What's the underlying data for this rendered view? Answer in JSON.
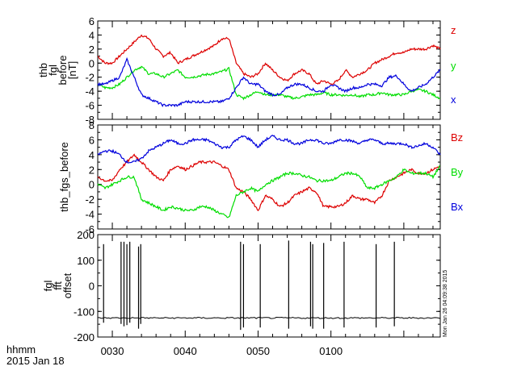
{
  "time_axis": {
    "ticks": [
      "0030",
      "0040",
      "0050",
      "0100"
    ],
    "label_line1": "hhmm",
    "label_line2": "2015 Jan 18"
  },
  "timestamp": "Mon Jan 26 04:09:38 2015",
  "chart_data": [
    {
      "type": "line",
      "panel": "top",
      "ylabel": [
        "thb",
        "fgl",
        "before",
        "[nT]"
      ],
      "ylim": [
        -8,
        6
      ],
      "yticks": [
        "6",
        "4",
        "2",
        "0",
        "-2",
        "-4",
        "-6",
        "-8"
      ],
      "xlim_minutes": [
        28,
        75
      ],
      "series": [
        {
          "name": "z",
          "color": "#dd0000",
          "x": [
            28,
            29,
            30,
            31,
            32,
            33,
            34,
            35,
            36,
            37,
            38,
            39,
            40,
            41,
            42,
            43,
            44,
            45,
            46,
            47,
            48,
            49,
            50,
            51,
            52,
            53,
            54,
            55,
            56,
            57,
            58,
            59,
            60,
            61,
            62,
            63,
            64,
            65,
            66,
            67,
            68,
            69,
            70,
            71,
            72,
            73,
            74,
            75
          ],
          "y": [
            1,
            0,
            0,
            1,
            2,
            3,
            4,
            3.5,
            2,
            1,
            1.5,
            0,
            0.5,
            1,
            1.5,
            2,
            2.5,
            3.5,
            3.5,
            0,
            -1.5,
            -2,
            -1.5,
            0,
            -1,
            -2,
            -2.5,
            -1.5,
            -1,
            -1.5,
            -3,
            -2.5,
            -3,
            -2.5,
            -1,
            -2,
            -1.5,
            -1,
            0,
            0.5,
            1,
            1.5,
            1.5,
            2,
            2,
            2,
            2.5,
            2
          ]
        },
        {
          "name": "y",
          "color": "#00dd00",
          "x": [
            28,
            29,
            30,
            31,
            32,
            33,
            34,
            35,
            36,
            37,
            38,
            39,
            40,
            41,
            42,
            43,
            44,
            45,
            46,
            47,
            48,
            49,
            50,
            51,
            52,
            53,
            54,
            55,
            56,
            57,
            58,
            59,
            60,
            61,
            62,
            63,
            64,
            65,
            66,
            67,
            68,
            69,
            70,
            71,
            72,
            73,
            74,
            75
          ],
          "y": [
            -3,
            -3.5,
            -3.5,
            -3,
            -2,
            -1,
            -0.5,
            -1.5,
            -1.5,
            -2,
            -1.5,
            -1,
            -2,
            -2,
            -1.8,
            -1.6,
            -1.5,
            -1.2,
            -0.8,
            -4.5,
            -5,
            -4.5,
            -4,
            -4.5,
            -4.5,
            -4.5,
            -4.8,
            -5,
            -4.8,
            -4.5,
            -4.5,
            -4.2,
            -4.5,
            -4.5,
            -4.6,
            -4.5,
            -4.8,
            -4.5,
            -4.5,
            -4.2,
            -4.5,
            -4.5,
            -4.5,
            -4,
            -3.8,
            -4,
            -4.5,
            -5
          ]
        },
        {
          "name": "x",
          "color": "#0000dd",
          "x": [
            28,
            29,
            30,
            31,
            32,
            33,
            34,
            35,
            36,
            37,
            38,
            39,
            40,
            41,
            42,
            43,
            44,
            45,
            46,
            47,
            48,
            49,
            50,
            51,
            52,
            53,
            54,
            55,
            56,
            57,
            58,
            59,
            60,
            61,
            62,
            63,
            64,
            65,
            66,
            67,
            68,
            69,
            70,
            71,
            72,
            73,
            74,
            75
          ],
          "y": [
            -3,
            -3,
            -2.5,
            -2,
            0.5,
            -2,
            -4.5,
            -5,
            -5.5,
            -6,
            -6,
            -6,
            -5.5,
            -5.5,
            -5.5,
            -5.5,
            -5.5,
            -5.5,
            -5,
            -3.5,
            -2,
            -3,
            -3,
            -4,
            -4.5,
            -4.5,
            -3.5,
            -3,
            -3,
            -3.5,
            -4,
            -4,
            -3,
            -3.5,
            -4,
            -3.5,
            -3.5,
            -3,
            -3,
            -3.2,
            -2,
            -1.8,
            -3,
            -4,
            -3.5,
            -3,
            -2,
            -1
          ]
        }
      ],
      "series_labels_position": "right"
    },
    {
      "type": "line",
      "panel": "middle",
      "ylabel": [
        "thb_fgs_before"
      ],
      "ylim": [
        -6,
        8
      ],
      "yticks": [
        "8",
        "6",
        "4",
        "2",
        "0",
        "-2",
        "-4",
        "-6"
      ],
      "xlim_minutes": [
        28,
        75
      ],
      "series": [
        {
          "name": "Bz",
          "color": "#dd0000",
          "x": [
            28,
            29,
            30,
            31,
            32,
            33,
            34,
            35,
            36,
            37,
            38,
            39,
            40,
            41,
            42,
            43,
            44,
            45,
            46,
            47,
            48,
            49,
            50,
            51,
            52,
            53,
            54,
            55,
            56,
            57,
            58,
            59,
            60,
            61,
            62,
            63,
            64,
            65,
            66,
            67,
            68,
            69,
            70,
            71,
            72,
            73,
            74,
            75
          ],
          "y": [
            1,
            0.5,
            0.5,
            2,
            3,
            4,
            3,
            2,
            1,
            0.5,
            2,
            2.5,
            2,
            2.5,
            3,
            3,
            3,
            2.5,
            2,
            -0.5,
            -1,
            -2,
            -3.5,
            -1.5,
            -2,
            -3,
            -2.5,
            -1.5,
            -1,
            -0.5,
            -1,
            -3,
            -3,
            -3,
            -2.5,
            -1.5,
            -2,
            -2,
            -2.5,
            -1.5,
            0.5,
            1,
            1.5,
            2,
            1.5,
            1.5,
            2,
            2.5
          ]
        },
        {
          "name": "By",
          "color": "#00dd00",
          "x": [
            28,
            29,
            30,
            31,
            32,
            33,
            34,
            35,
            36,
            37,
            38,
            39,
            40,
            41,
            42,
            43,
            44,
            45,
            46,
            47,
            48,
            49,
            50,
            51,
            52,
            53,
            54,
            55,
            56,
            57,
            58,
            59,
            60,
            61,
            62,
            63,
            64,
            65,
            66,
            67,
            68,
            69,
            70,
            71,
            72,
            73,
            74,
            75
          ],
          "y": [
            0,
            -0.5,
            0,
            0.5,
            1,
            1,
            -2,
            -2.5,
            -3,
            -3.5,
            -3,
            -3.2,
            -3.5,
            -3.5,
            -3,
            -3,
            -3.5,
            -4,
            -4.5,
            -1.5,
            -1,
            -0.5,
            -1,
            0,
            0.5,
            1,
            1.5,
            1.5,
            1.2,
            1,
            0.5,
            0.5,
            0.5,
            1,
            1.5,
            1.5,
            1,
            -0.5,
            -0.5,
            0,
            0.5,
            1,
            2,
            1.5,
            1.5,
            1.5,
            1,
            2.5
          ]
        },
        {
          "name": "Bx",
          "color": "#0000dd",
          "x": [
            28,
            29,
            30,
            31,
            32,
            33,
            34,
            35,
            36,
            37,
            38,
            39,
            40,
            41,
            42,
            43,
            44,
            45,
            46,
            47,
            48,
            49,
            50,
            51,
            52,
            53,
            54,
            55,
            56,
            57,
            58,
            59,
            60,
            61,
            62,
            63,
            64,
            65,
            66,
            67,
            68,
            69,
            70,
            71,
            72,
            73,
            74,
            75
          ],
          "y": [
            4,
            4.5,
            4.5,
            4,
            3,
            3,
            3.5,
            4.5,
            5,
            5.5,
            6,
            5.5,
            5.5,
            6,
            6,
            6,
            5.5,
            5,
            5,
            6,
            6.5,
            6,
            5,
            6,
            6.5,
            6,
            6,
            5.5,
            5.5,
            6,
            6,
            5.5,
            5.5,
            6,
            6,
            5.8,
            5.5,
            6,
            6,
            5.5,
            5.5,
            5.5,
            5.5,
            5,
            5.2,
            5.5,
            5,
            4
          ]
        }
      ],
      "series_labels_position": "right"
    },
    {
      "type": "line",
      "panel": "bottom",
      "ylabel": [
        "fgl",
        "fft",
        "offset"
      ],
      "ylim": [
        -220,
        210
      ],
      "yticks": [
        "200",
        "100",
        "0",
        "-100",
        "-200"
      ],
      "xlim_minutes": [
        28,
        75
      ],
      "baseline": -140,
      "spikes": [
        {
          "x": 28.8,
          "top": 170,
          "bottom": -160
        },
        {
          "x": 31.2,
          "top": 180,
          "bottom": -165
        },
        {
          "x": 31.6,
          "top": 180,
          "bottom": -175
        },
        {
          "x": 32.0,
          "top": 170,
          "bottom": -170
        },
        {
          "x": 32.4,
          "top": 180,
          "bottom": -160
        },
        {
          "x": 33.6,
          "top": 160,
          "bottom": -185
        },
        {
          "x": 33.9,
          "top": 170,
          "bottom": -165
        },
        {
          "x": 47.6,
          "top": 180,
          "bottom": -190
        },
        {
          "x": 48.0,
          "top": 170,
          "bottom": -180
        },
        {
          "x": 50.3,
          "top": 170,
          "bottom": -180
        },
        {
          "x": 54.2,
          "top": 185,
          "bottom": -185
        },
        {
          "x": 57.2,
          "top": 180,
          "bottom": -175
        },
        {
          "x": 57.5,
          "top": 170,
          "bottom": -185
        },
        {
          "x": 59.0,
          "top": 175,
          "bottom": -185
        },
        {
          "x": 61.8,
          "top": 180,
          "bottom": -180
        },
        {
          "x": 66.2,
          "top": 170,
          "bottom": -180
        },
        {
          "x": 68.7,
          "top": 180,
          "bottom": -175
        }
      ]
    }
  ]
}
